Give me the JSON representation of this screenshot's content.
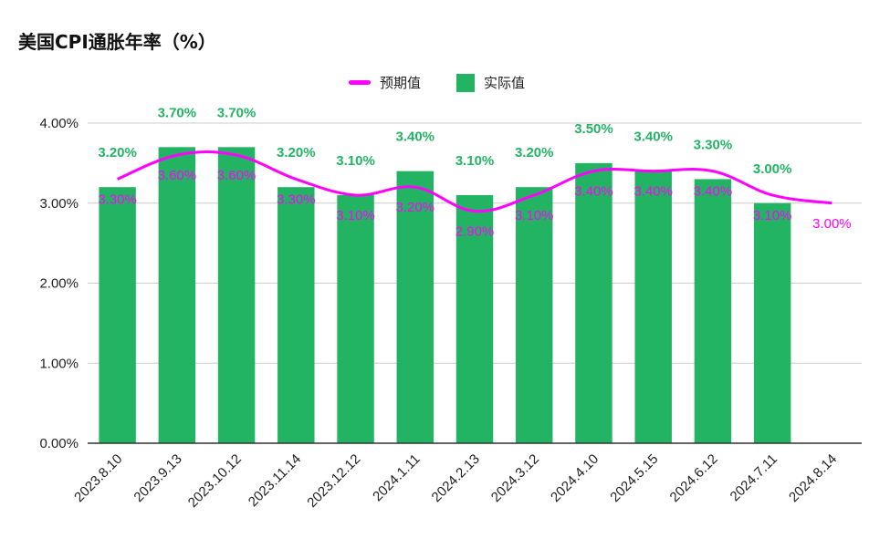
{
  "chart_data": {
    "type": "bar",
    "title": "美国CPI通胀年率（%）",
    "categories": [
      "2023.8.10",
      "2023.9.13",
      "2023.10.12",
      "2023.11.14",
      "2023.12.12",
      "2024.1.11",
      "2024.2.13",
      "2024.3.12",
      "2024.4.10",
      "2024.5.15",
      "2024.6.12",
      "2024.7.11",
      "2024.8.14"
    ],
    "series": [
      {
        "name": "预期值",
        "kind": "line",
        "color": "#ff00ff",
        "values": [
          3.3,
          3.6,
          3.6,
          3.3,
          3.1,
          3.2,
          2.9,
          3.1,
          3.4,
          3.4,
          3.4,
          3.1,
          3.0
        ],
        "labels": [
          "3.30%",
          "3.60%",
          "3.60%",
          "3.30%",
          "3.10%",
          "3.20%",
          "2.90%",
          "3.10%",
          "3.40%",
          "3.40%",
          "3.40%",
          "3.10%",
          "3.00%"
        ]
      },
      {
        "name": "实际值",
        "kind": "bar",
        "color": "#22b462",
        "values": [
          3.2,
          3.7,
          3.7,
          3.2,
          3.1,
          3.4,
          3.1,
          3.2,
          3.5,
          3.4,
          3.3,
          3.0,
          null
        ],
        "labels": [
          "3.20%",
          "3.70%",
          "3.70%",
          "3.20%",
          "3.10%",
          "3.40%",
          "3.10%",
          "3.20%",
          "3.50%",
          "3.40%",
          "3.30%",
          "3.00%",
          ""
        ]
      }
    ],
    "ylim": [
      0,
      4
    ],
    "yticks": [
      0,
      1,
      2,
      3,
      4
    ],
    "ytick_labels": [
      "0.00%",
      "1.00%",
      "2.00%",
      "3.00%",
      "4.00%"
    ],
    "xlabel": "",
    "ylabel": "",
    "grid": true,
    "legend_position": "top-center"
  }
}
